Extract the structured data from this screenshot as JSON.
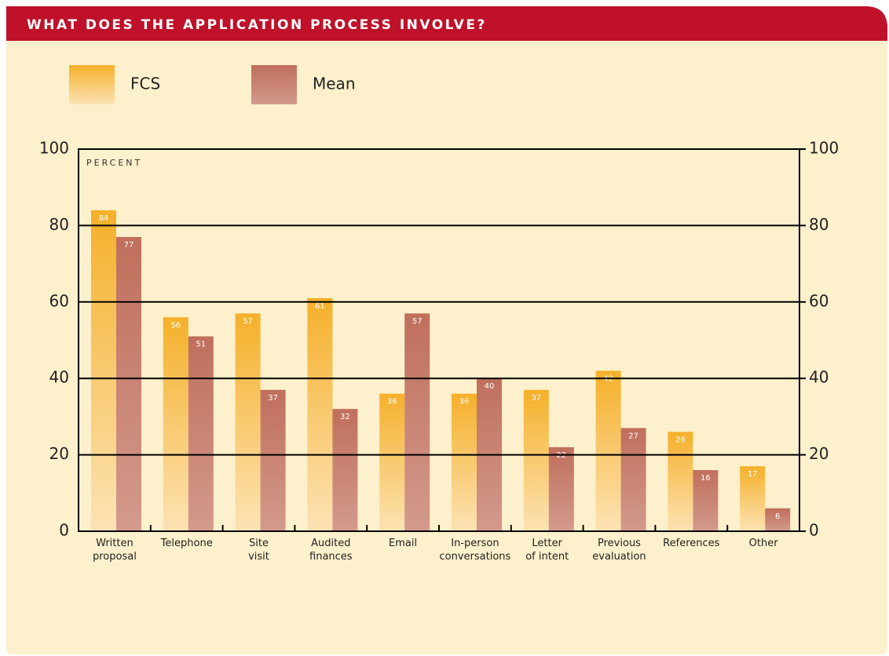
{
  "chart_data": {
    "type": "bar",
    "title": "WHAT DOES THE APPLICATION PROCESS INVOLVE?",
    "y_label": "PERCENT",
    "categories": [
      "Written proposal",
      "Telephone",
      "Site visit",
      "Audited finances",
      "Email",
      "In-person conversations",
      "Letter of intent",
      "Previous evaluation",
      "References",
      "Other"
    ],
    "series": [
      {
        "name": "FCS",
        "color": "#f5b02a",
        "values": [
          84,
          56,
          57,
          61,
          36,
          36,
          37,
          42,
          26,
          17
        ]
      },
      {
        "name": "Mean",
        "color": "#c06f5c",
        "values": [
          77,
          51,
          37,
          32,
          57,
          40,
          22,
          27,
          16,
          6
        ]
      }
    ],
    "ylim": [
      0,
      100
    ],
    "yticks": [
      0,
      20,
      40,
      60,
      80,
      100
    ],
    "y2lim": [
      0,
      100
    ],
    "y2ticks": [
      0,
      20,
      40,
      60,
      80,
      100
    ],
    "grid": true,
    "legend": "top-left"
  }
}
